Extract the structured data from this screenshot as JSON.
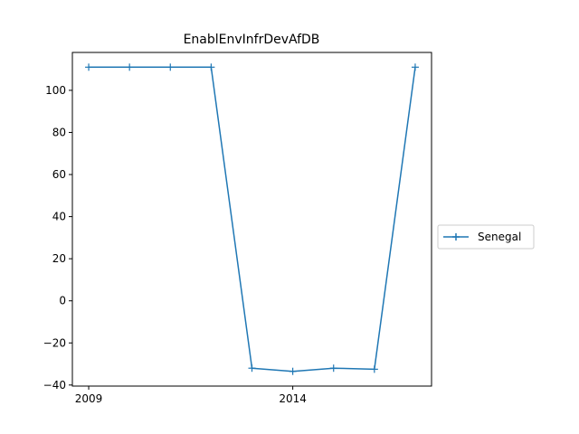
{
  "chart_data": {
    "type": "line",
    "title": "EnablEnvInfrDevAfDB",
    "xlabel": "",
    "ylabel": "",
    "x": [
      2009,
      2010,
      2011,
      2012,
      2013,
      2014,
      2015,
      2016,
      2017
    ],
    "series": [
      {
        "name": "Senegal",
        "color": "#1f77b4",
        "marker": "plus",
        "values": [
          111,
          111,
          111,
          111,
          -32,
          -33.5,
          -32,
          -32.5,
          111
        ]
      }
    ],
    "xlim": [
      2008.6,
      2017.4
    ],
    "ylim": [
      -40.5,
      118
    ],
    "x_ticks": [
      {
        "value": 2009,
        "label": "2009"
      },
      {
        "value": 2014,
        "label": "2014"
      }
    ],
    "y_ticks": [
      {
        "value": 100,
        "label": "100"
      },
      {
        "value": 80,
        "label": "80"
      },
      {
        "value": 60,
        "label": "60"
      },
      {
        "value": 40,
        "label": "40"
      },
      {
        "value": 20,
        "label": "20"
      },
      {
        "value": 0,
        "label": "0"
      },
      {
        "value": -20,
        "label": "−20"
      },
      {
        "value": -40,
        "label": "−40"
      }
    ],
    "grid": false,
    "legend_position": "right-outside"
  }
}
